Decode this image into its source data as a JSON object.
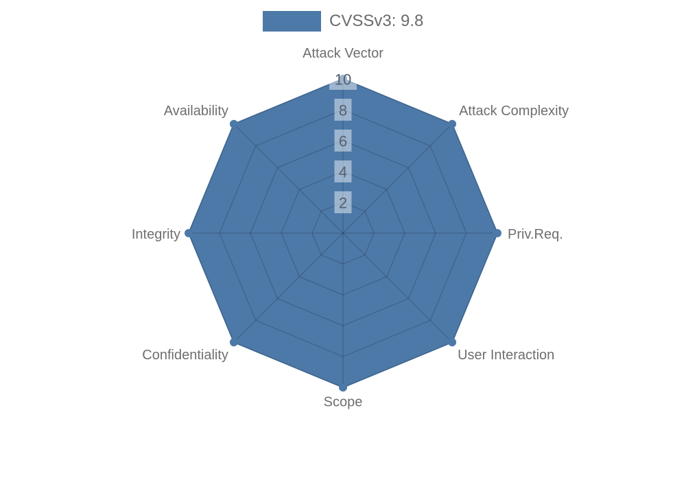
{
  "legend": {
    "label": "CVSSv3: 9.8",
    "swatch_color": "#4d79a8",
    "text_color": "#6b6b6b"
  },
  "chart_data": {
    "type": "radar",
    "categories": [
      "Attack Vector",
      "Attack Complexity",
      "Priv.Req.",
      "User Interaction",
      "Scope",
      "Confidentiality",
      "Integrity",
      "Availability"
    ],
    "series": [
      {
        "name": "CVSSv3: 9.8",
        "values": [
          10,
          10,
          10,
          10,
          10,
          10,
          10,
          10
        ],
        "color": "#4d79a8"
      }
    ],
    "r_axis": {
      "min": 0,
      "max": 10,
      "ticks": [
        2,
        4,
        6,
        8,
        10
      ]
    },
    "grid": true,
    "grid_shape": "polygon",
    "legend_position": "top-center",
    "styles": {
      "fill_color": "#4d79a8",
      "grid_color": "rgba(0,0,0,0.18)",
      "label_color": "#6e6e6e",
      "tick_color": "#55606e",
      "tick_bg": "rgba(255,255,255,0.45)"
    }
  }
}
